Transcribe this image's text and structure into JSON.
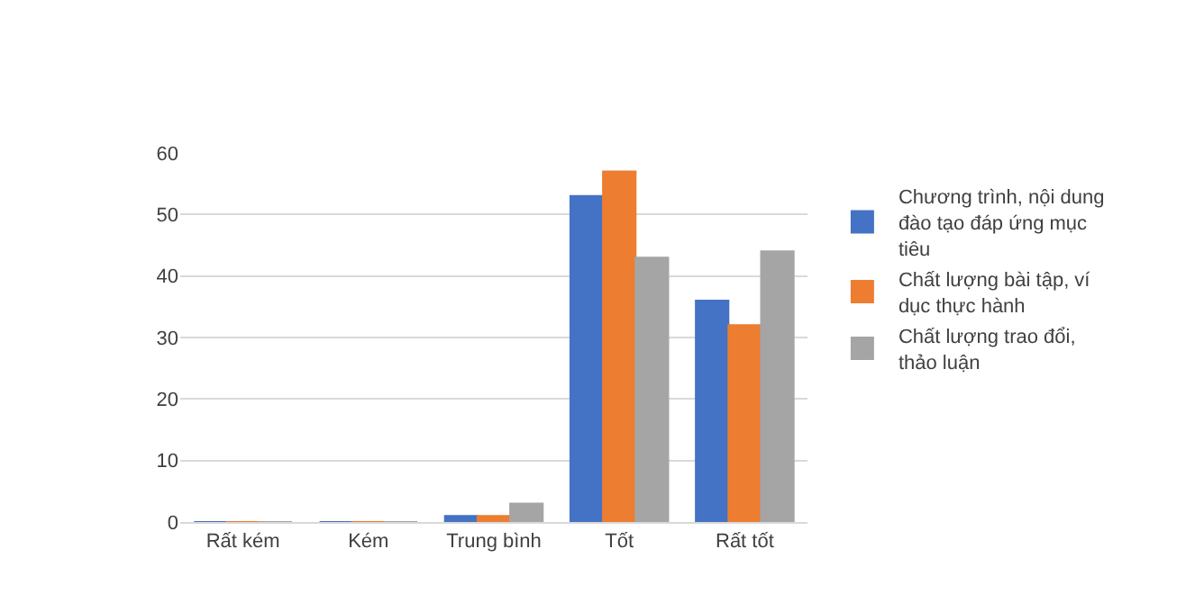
{
  "chart_data": {
    "type": "bar",
    "categories": [
      "Rất kém",
      "Kém",
      "Trung bình",
      "Tốt",
      "Rất tốt"
    ],
    "series": [
      {
        "name": "Chương trình, nội dung đào tạo đáp ứng mục tiêu",
        "color": "#4472c4",
        "values": [
          0,
          0,
          1,
          53,
          36
        ]
      },
      {
        "name": "Chất lượng bài tập, ví dục thực hành",
        "color": "#ed7d31",
        "values": [
          0,
          0,
          1,
          57,
          32
        ]
      },
      {
        "name": "Chất lượng trao đổi, thảo luận",
        "color": "#a5a5a5",
        "values": [
          0,
          0,
          3,
          43,
          44
        ]
      }
    ],
    "ylim": [
      0,
      60
    ],
    "yticks": [
      0,
      10,
      20,
      30,
      40,
      50,
      60
    ],
    "grid": "y",
    "legend": "right"
  }
}
